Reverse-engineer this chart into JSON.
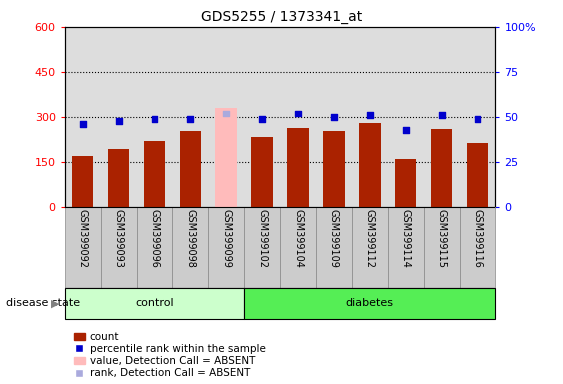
{
  "title": "GDS5255 / 1373341_at",
  "samples": [
    "GSM399092",
    "GSM399093",
    "GSM399096",
    "GSM399098",
    "GSM399099",
    "GSM399102",
    "GSM399104",
    "GSM399109",
    "GSM399112",
    "GSM399114",
    "GSM399115",
    "GSM399116"
  ],
  "counts": [
    170,
    195,
    220,
    255,
    330,
    235,
    265,
    255,
    280,
    160,
    260,
    215
  ],
  "percentile_ranks": [
    46,
    48,
    49,
    49,
    52,
    49,
    52,
    50,
    51,
    43,
    51,
    49
  ],
  "absent_index": 4,
  "n_control": 5,
  "n_diabetes": 7,
  "bar_color_normal": "#aa2200",
  "bar_color_absent": "#ffbbbb",
  "dot_color_normal": "#0000cc",
  "dot_color_absent": "#aaaadd",
  "ylim_left": [
    0,
    600
  ],
  "ylim_right": [
    0,
    100
  ],
  "yticks_left": [
    0,
    150,
    300,
    450,
    600
  ],
  "yticks_right": [
    0,
    25,
    50,
    75,
    100
  ],
  "ytick_labels_left": [
    "0",
    "150",
    "300",
    "450",
    "600"
  ],
  "ytick_labels_right": [
    "0",
    "25",
    "50",
    "75",
    "100%"
  ],
  "bg_color": "#dddddd",
  "control_bg": "#ccffcc",
  "diabetes_bg": "#55ee55",
  "label_disease_state": "disease state",
  "label_control": "control",
  "label_diabetes": "diabetes",
  "legend_items": [
    {
      "type": "patch",
      "color": "#aa2200",
      "label": "count"
    },
    {
      "type": "marker",
      "color": "#0000cc",
      "label": "percentile rank within the sample"
    },
    {
      "type": "patch",
      "color": "#ffbbbb",
      "label": "value, Detection Call = ABSENT"
    },
    {
      "type": "marker",
      "color": "#aaaadd",
      "label": "rank, Detection Call = ABSENT"
    }
  ]
}
